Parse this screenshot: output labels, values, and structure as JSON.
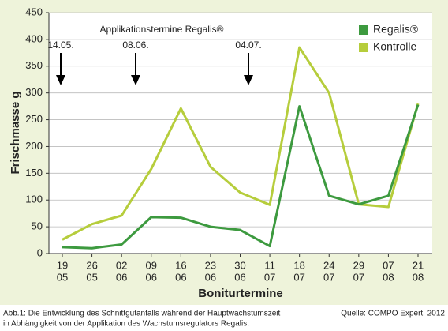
{
  "chart_data": {
    "type": "line",
    "y_label": "Frischmasse g",
    "x_label": "Boniturtermine",
    "annotation_title": "Applikationstermine Regalis®",
    "annotations": [
      "14.05.",
      "08.06.",
      "04.07."
    ],
    "categories": [
      [
        "19",
        "05"
      ],
      [
        "26",
        "05"
      ],
      [
        "02",
        "06"
      ],
      [
        "09",
        "06"
      ],
      [
        "16",
        "06"
      ],
      [
        "23",
        "06"
      ],
      [
        "30",
        "06"
      ],
      [
        "11",
        "07"
      ],
      [
        "18",
        "07"
      ],
      [
        "24",
        "07"
      ],
      [
        "29",
        "07"
      ],
      [
        "07",
        "08"
      ],
      [
        "21",
        "08"
      ]
    ],
    "series": [
      {
        "name": "Regalis®",
        "color": "#3d9a3f",
        "values": [
          12,
          10,
          17,
          68,
          67,
          50,
          44,
          14,
          275,
          108,
          92,
          108,
          278
        ]
      },
      {
        "name": "Kontrolle",
        "color": "#b6cd3c",
        "values": [
          26,
          55,
          71,
          158,
          271,
          162,
          114,
          91,
          385,
          300,
          92,
          87,
          280
        ]
      }
    ],
    "ylim": [
      0,
      450
    ],
    "yticks": [
      0,
      50,
      100,
      150,
      200,
      250,
      300,
      350,
      400,
      450
    ],
    "grid": true,
    "legend": "top-right",
    "caption": [
      "Abb.1: Die Entwicklung des Schnittgutanfalls während der Hauptwachstumszeit",
      "in Abhängigkeit von der Applikation des Wachstumsregulators Regalis."
    ],
    "source": "Quelle: COMPO Expert, 2012"
  }
}
